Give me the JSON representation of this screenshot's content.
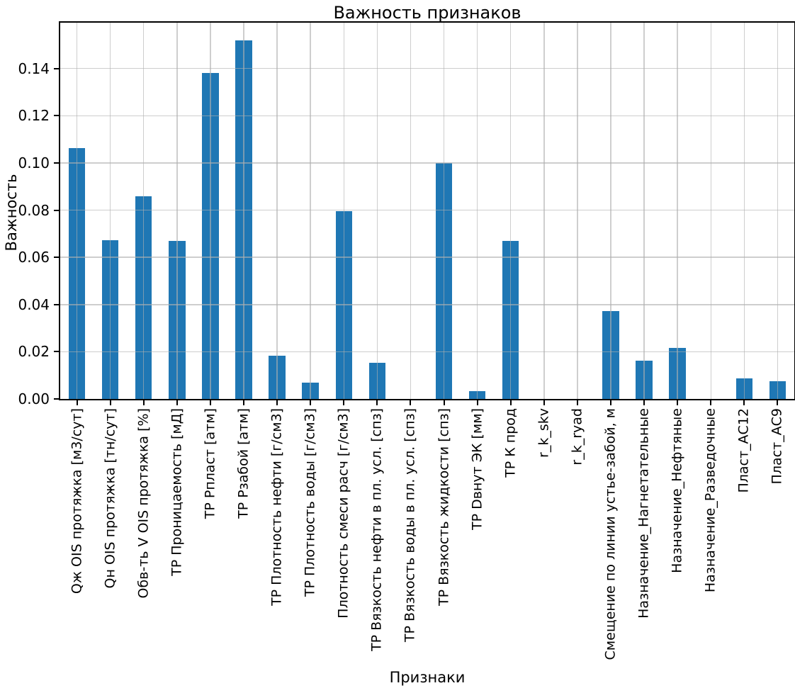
{
  "chart_data": {
    "type": "bar",
    "title": "Важность признаков",
    "xlabel": "Признаки",
    "ylabel": "Важность",
    "categories": [
      "Qж OIS протяжка [м3/сут]",
      "Qн OIS протяжка [тн/сут]",
      "Обв-ть V OIS протяжка [%]",
      "ТР Проницаемость [мД]",
      "ТР Рпласт [атм]",
      "ТР Рзабой [атм]",
      "ТР Плотность нефти [г/см3]",
      "ТР Плотность воды [г/см3]",
      "Плотность смеси расч [г/см3]",
      "ТР Вязкость нефти в пл. усл. [спз]",
      "ТР Вязкость воды в пл. усл. [спз]",
      "ТР Вязкость жидкости [спз]",
      "ТР Dвнут ЭК [мм]",
      "ТР К прод",
      "r_k_skv",
      "r_k_ryad",
      "Смещение по линии устье-забой, м",
      "Назначение_Нагнетательные",
      "Назначение_Нефтяные",
      "Назначение_Разведочные",
      "Пласт_АС12",
      "Пласт_АС9"
    ],
    "values": [
      0.1063,
      0.0672,
      0.0859,
      0.067,
      0.1382,
      0.1518,
      0.0182,
      0.007,
      0.0795,
      0.0154,
      0.0,
      0.1001,
      0.0032,
      0.0669,
      0.0,
      0.0,
      0.0372,
      0.0163,
      0.0217,
      0.0,
      0.0087,
      0.0074
    ],
    "ylim": [
      0,
      0.1594
    ],
    "yticks": [
      0.0,
      0.02,
      0.04,
      0.06,
      0.08,
      0.1,
      0.12,
      0.14
    ],
    "ytick_labels": [
      "0.00",
      "0.02",
      "0.04",
      "0.06",
      "0.08",
      "0.10",
      "0.12",
      "0.14"
    ],
    "bar_color": "#1f77b4",
    "grid": true,
    "grid_color": "#b0b0b0",
    "legend": "none"
  }
}
